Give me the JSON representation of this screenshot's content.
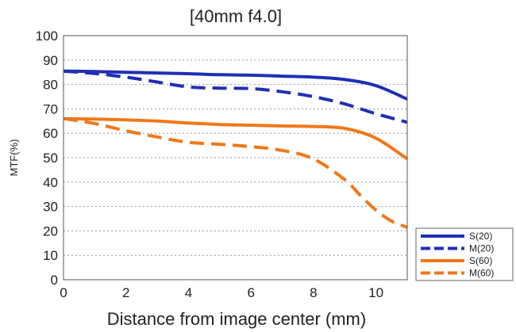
{
  "chart_data": {
    "type": "line",
    "title": "[40mm f4.0]",
    "xlabel": "Distance from image center (mm)",
    "ylabel": "MTF(%)",
    "xlim": [
      0,
      11
    ],
    "ylim": [
      0,
      100
    ],
    "xticks": [
      0,
      2,
      4,
      6,
      8,
      10
    ],
    "yticks": [
      0,
      10,
      20,
      30,
      40,
      50,
      60,
      70,
      80,
      90,
      100
    ],
    "grid": "horizontal dotted",
    "legend_position": "bottom-right, outside plot",
    "series": [
      {
        "name": "S(20)",
        "color": "#1f2fb5",
        "dash": "solid",
        "x": [
          0,
          1,
          2,
          3,
          4,
          5,
          6,
          7,
          8,
          9,
          10,
          11
        ],
        "values": [
          85.5,
          85.3,
          85,
          84.7,
          84.4,
          84,
          83.8,
          83.4,
          83,
          82,
          79.5,
          74
        ]
      },
      {
        "name": "M(20)",
        "color": "#1f2fb5",
        "dash": "dashed",
        "x": [
          0,
          1,
          2,
          3,
          4,
          5,
          6,
          7,
          8,
          9,
          10,
          11
        ],
        "values": [
          85.5,
          84.5,
          83,
          81,
          79,
          78.5,
          78.3,
          77,
          75,
          72,
          68,
          64.5
        ]
      },
      {
        "name": "S(60)",
        "color": "#f07819",
        "dash": "solid",
        "x": [
          0,
          1,
          2,
          3,
          4,
          5,
          6,
          7,
          8,
          9,
          10,
          11
        ],
        "values": [
          66,
          65.8,
          65.5,
          65,
          64.2,
          63.6,
          63.3,
          63,
          62.8,
          62,
          58,
          49.5
        ]
      },
      {
        "name": "M(60)",
        "color": "#f07819",
        "dash": "dashed",
        "x": [
          0,
          1,
          2,
          3,
          4,
          5,
          6,
          7,
          8,
          9,
          9.5,
          10,
          10.5,
          11
        ],
        "values": [
          66,
          64,
          61,
          58.5,
          56.3,
          55.5,
          54.5,
          53,
          49.5,
          41,
          34.5,
          28.5,
          24,
          21.5
        ]
      }
    ]
  }
}
